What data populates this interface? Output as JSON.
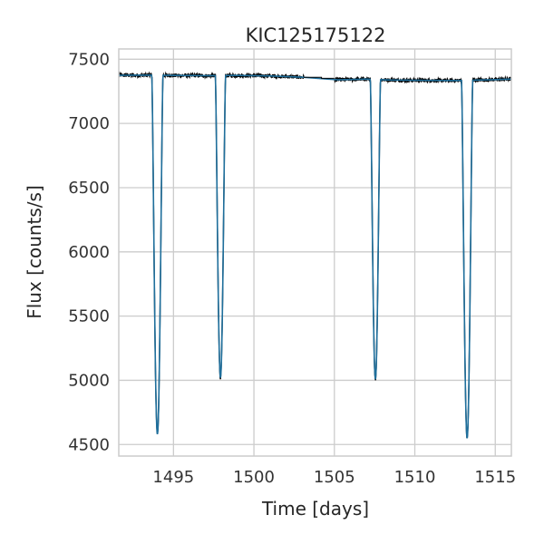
{
  "chart_data": {
    "type": "line",
    "title": "KIC125175122",
    "xlabel": "Time [days]",
    "ylabel": "Flux [counts/s]",
    "xlim": [
      1491.6,
      1516.0
    ],
    "ylim": [
      4410,
      7580
    ],
    "xticks": [
      1495,
      1500,
      1505,
      1510,
      1515
    ],
    "yticks": [
      4500,
      5000,
      5500,
      6000,
      6500,
      7000,
      7500
    ],
    "grid": true,
    "legend": "none",
    "series": [
      {
        "style": "points",
        "color": "#000000",
        "gap": [
          1503.1,
          1505.0
        ],
        "baseline": [
          [
            1491.6,
            7375
          ],
          [
            1493.5,
            7376
          ],
          [
            1496.0,
            7373
          ],
          [
            1497.0,
            7372
          ],
          [
            1499.0,
            7374
          ],
          [
            1501.0,
            7370
          ],
          [
            1503.0,
            7360
          ],
          [
            1505.2,
            7340
          ],
          [
            1507.0,
            7345
          ],
          [
            1508.5,
            7338
          ],
          [
            1510.0,
            7336
          ],
          [
            1512.5,
            7334
          ],
          [
            1514.0,
            7338
          ],
          [
            1516.0,
            7345
          ]
        ],
        "eclipses": [
          {
            "t0": 1494.0,
            "depth_flux": 4580,
            "half_width": 0.35
          },
          {
            "t0": 1497.92,
            "depth_flux": 5020,
            "half_width": 0.32
          },
          {
            "t0": 1507.55,
            "depth_flux": 5010,
            "half_width": 0.32
          },
          {
            "t0": 1513.25,
            "depth_flux": 4550,
            "half_width": 0.35
          }
        ]
      },
      {
        "style": "line",
        "color": "#1f6f9c",
        "note_free": true
      }
    ]
  },
  "colors": {
    "grid": "#cccccc",
    "spine": "#cccccc",
    "data": "#000000",
    "model": "#1f6f9c"
  }
}
